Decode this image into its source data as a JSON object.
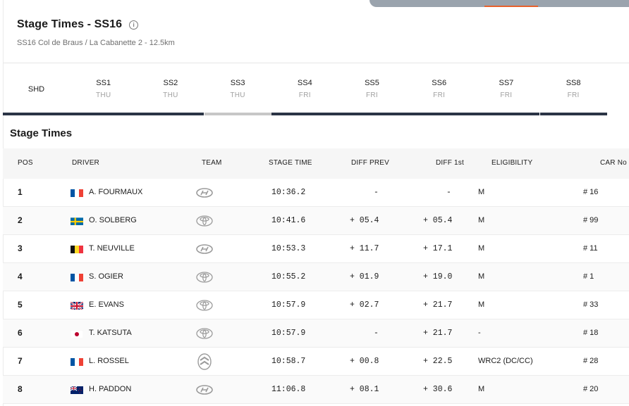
{
  "header": {
    "title": "Stage Times - SS16",
    "subtitle": "SS16 Col de Braus / La Cabanette 2 - 12.5km",
    "info_icon": "info-icon"
  },
  "stage_tabs": [
    {
      "label": "SHD",
      "day": "",
      "bar": "dark"
    },
    {
      "label": "SS1",
      "day": "THU",
      "bar": "dark"
    },
    {
      "label": "SS2",
      "day": "THU",
      "bar": "dark"
    },
    {
      "label": "SS3",
      "day": "THU",
      "bar": "light"
    },
    {
      "label": "SS4",
      "day": "FRI",
      "bar": "dark"
    },
    {
      "label": "SS5",
      "day": "FRI",
      "bar": "dark"
    },
    {
      "label": "SS6",
      "day": "FRI",
      "bar": "dark"
    },
    {
      "label": "SS7",
      "day": "FRI",
      "bar": "dark"
    },
    {
      "label": "SS8",
      "day": "FRI",
      "bar": "dark"
    }
  ],
  "section_title": "Stage Times",
  "columns": {
    "pos": "POS",
    "driver": "DRIVER",
    "team": "TEAM",
    "stage_time": "STAGE TIME",
    "diff_prev": "DIFF PREV",
    "diff_first": "DIFF 1st",
    "eligibility": "ELIGIBILITY",
    "car_no": "CAR No"
  },
  "rows": [
    {
      "pos": "1",
      "flag": "france-flag",
      "driver": "A. FOURMAUX",
      "team": "hyundai-logo",
      "stage_time": "10:36.2",
      "diff_prev": "-",
      "diff_first": "-",
      "eligibility": "M",
      "car_no": "# 16"
    },
    {
      "pos": "2",
      "flag": "sweden-flag",
      "driver": "O. SOLBERG",
      "team": "toyota-logo",
      "stage_time": "10:41.6",
      "diff_prev": "+ 05.4",
      "diff_first": "+ 05.4",
      "eligibility": "M",
      "car_no": "# 99"
    },
    {
      "pos": "3",
      "flag": "belgium-flag",
      "driver": "T. NEUVILLE",
      "team": "hyundai-logo",
      "stage_time": "10:53.3",
      "diff_prev": "+ 11.7",
      "diff_first": "+ 17.1",
      "eligibility": "M",
      "car_no": "# 11"
    },
    {
      "pos": "4",
      "flag": "france-flag",
      "driver": "S. OGIER",
      "team": "toyota-logo",
      "stage_time": "10:55.2",
      "diff_prev": "+ 01.9",
      "diff_first": "+ 19.0",
      "eligibility": "M",
      "car_no": "# 1"
    },
    {
      "pos": "5",
      "flag": "uk-flag",
      "driver": "E. EVANS",
      "team": "toyota-logo",
      "stage_time": "10:57.9",
      "diff_prev": "+ 02.7",
      "diff_first": "+ 21.7",
      "eligibility": "M",
      "car_no": "# 33"
    },
    {
      "pos": "6",
      "flag": "japan-flag",
      "driver": "T. KATSUTA",
      "team": "toyota-logo",
      "stage_time": "10:57.9",
      "diff_prev": "-",
      "diff_first": "+ 21.7",
      "eligibility": "-",
      "car_no": "# 18"
    },
    {
      "pos": "7",
      "flag": "france-flag",
      "driver": "L. ROSSEL",
      "team": "citroen-logo",
      "stage_time": "10:58.7",
      "diff_prev": "+ 00.8",
      "diff_first": "+ 22.5",
      "eligibility": "WRC2 (DC/CC)",
      "car_no": "# 28"
    },
    {
      "pos": "8",
      "flag": "new-zealand-flag",
      "driver": "H. PADDON",
      "team": "hyundai-logo",
      "stage_time": "11:06.8",
      "diff_prev": "+ 08.1",
      "diff_first": "+ 30.6",
      "eligibility": "M",
      "car_no": "# 20"
    }
  ],
  "colors": {
    "active_bar": "#2b3445",
    "inactive_bar": "#c7c7c7",
    "accent": "#e8612c"
  }
}
